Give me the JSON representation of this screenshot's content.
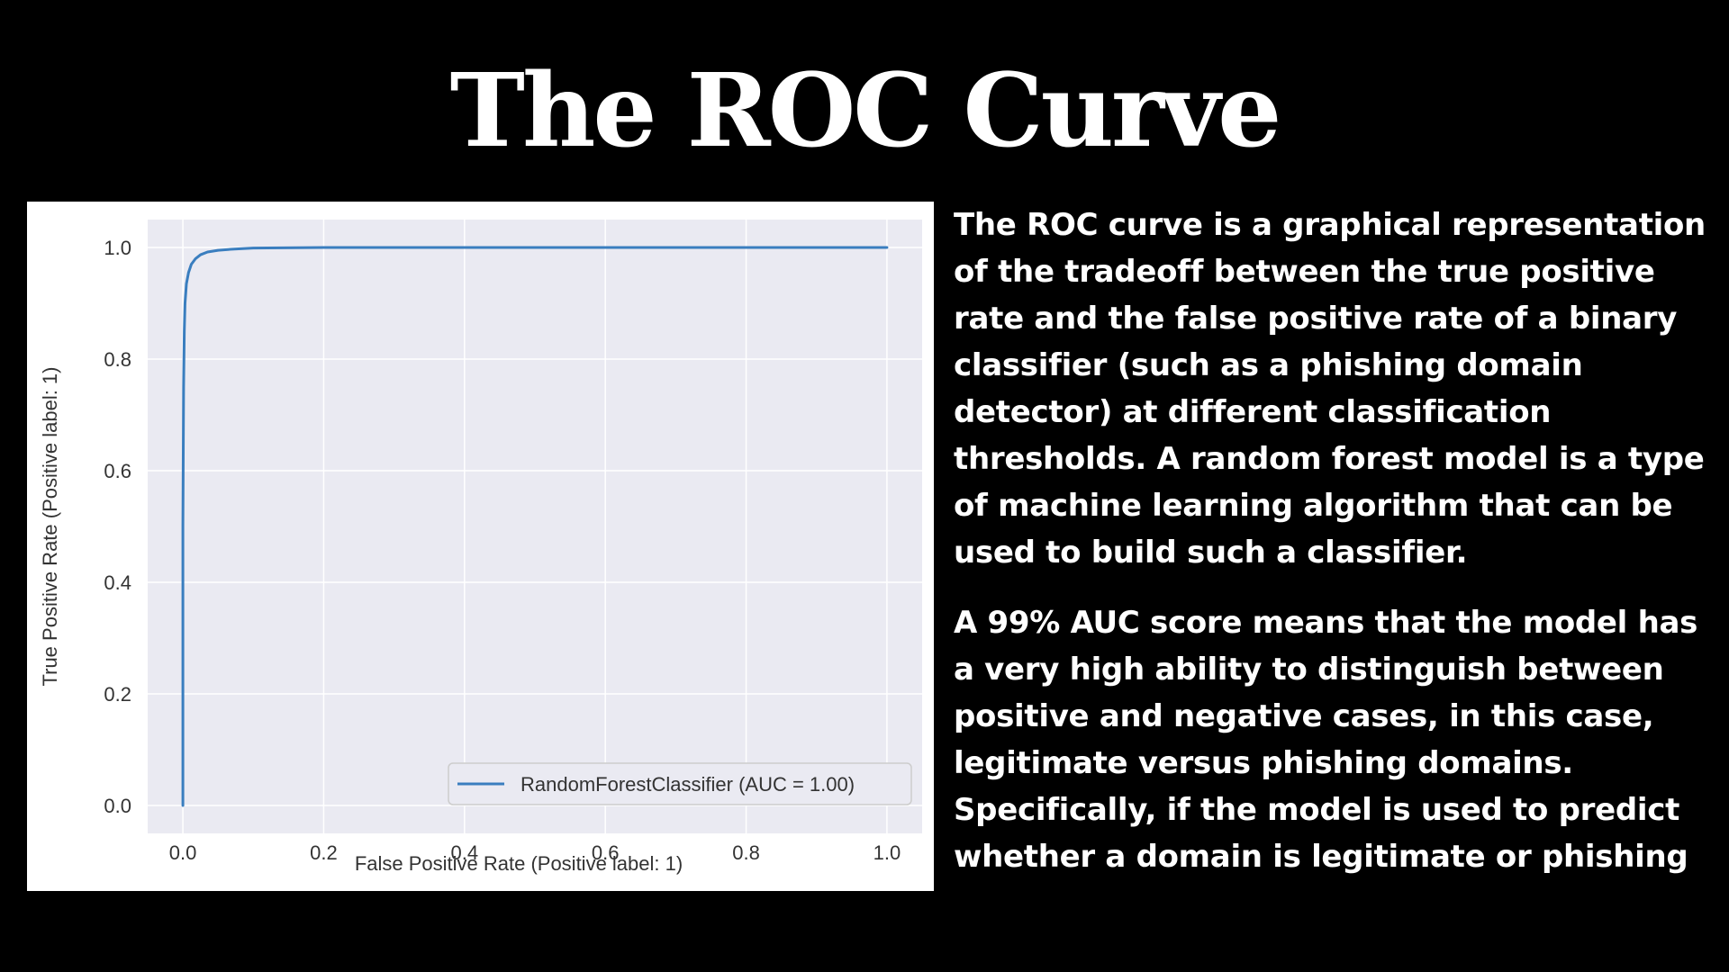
{
  "title": "The ROC Curve",
  "paragraphs": [
    "The ROC curve is a graphical representation of the tradeoff between the true positive rate and the false positive rate of a binary classifier (such as a phishing domain detector) at different classification thresholds. A random forest model is a type of machine learning algorithm that can be used to build such a classifier.",
    "A 99% AUC score means that the model has a very high ability to distinguish between positive and negative cases, in this case, legitimate versus phishing domains. Specifically, if the model is used to predict whether a domain is legitimate or phishing"
  ],
  "chart_data": {
    "type": "line",
    "title": "",
    "xlabel": "False Positive Rate (Positive label: 1)",
    "ylabel": "True Positive Rate (Positive label: 1)",
    "xlim": [
      -0.05,
      1.05
    ],
    "ylim": [
      -0.05,
      1.05
    ],
    "xticks": [
      "0.0",
      "0.2",
      "0.4",
      "0.6",
      "0.8",
      "1.0"
    ],
    "yticks": [
      "0.0",
      "0.2",
      "0.4",
      "0.6",
      "0.8",
      "1.0"
    ],
    "grid": true,
    "legend_position": "lower-right",
    "series": [
      {
        "name": "RandomForestClassifier (AUC = 1.00)",
        "color": "#3a7ebf",
        "x": [
          0.0,
          0.0,
          0.001,
          0.002,
          0.003,
          0.005,
          0.008,
          0.012,
          0.018,
          0.025,
          0.035,
          0.05,
          0.07,
          0.1,
          0.2,
          0.4,
          0.6,
          0.8,
          1.0
        ],
        "y": [
          0.0,
          0.5,
          0.75,
          0.85,
          0.9,
          0.935,
          0.955,
          0.97,
          0.98,
          0.987,
          0.992,
          0.995,
          0.997,
          0.999,
          1.0,
          1.0,
          1.0,
          1.0,
          1.0
        ]
      }
    ]
  }
}
